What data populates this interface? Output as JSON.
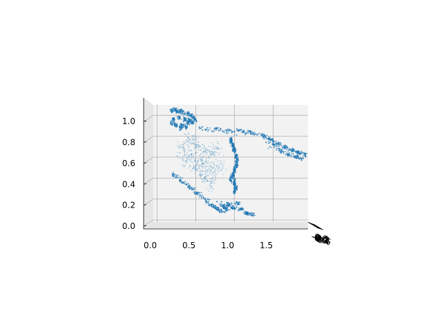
{
  "chart_data": {
    "type": "scatter",
    "projection": "3d",
    "title": "",
    "xlabel": "",
    "ylabel": "",
    "zlabel": "",
    "x_ticks": [
      "0.0",
      "0.5",
      "1.0",
      "1.5"
    ],
    "z_ticks": [
      "0.0",
      "0.2",
      "0.4",
      "0.6",
      "0.8",
      "1.0"
    ],
    "y_ticks": [
      "-0.6",
      "-0.4",
      "-0.2",
      "0.0",
      "0.2",
      "0.4",
      "0.6"
    ],
    "xlim": [
      -0.05,
      1.95
    ],
    "zlim": [
      -0.02,
      1.1
    ],
    "grid": true,
    "marker_color": "#1f77b4",
    "point_count": 2400,
    "series": [
      {
        "structure": "dense top-left cluster",
        "points": [
          [
            0.18,
            1.05
          ],
          [
            0.22,
            1.06
          ],
          [
            0.26,
            1.04
          ],
          [
            0.3,
            1.05
          ],
          [
            0.34,
            1.03
          ],
          [
            0.4,
            1.02
          ],
          [
            0.44,
            1.0
          ],
          [
            0.48,
            0.98
          ],
          [
            0.5,
            0.95
          ],
          [
            0.46,
            0.93
          ],
          [
            0.4,
            0.92
          ],
          [
            0.32,
            0.9
          ],
          [
            0.24,
            0.9
          ],
          [
            0.18,
            0.92
          ],
          [
            0.2,
            0.96
          ],
          [
            0.28,
            0.98
          ],
          [
            0.36,
            0.96
          ],
          [
            0.42,
            0.95
          ],
          [
            0.38,
            0.88
          ],
          [
            0.3,
            0.87
          ]
        ]
      },
      {
        "structure": "upper diagonal band",
        "points": [
          [
            0.55,
            0.88
          ],
          [
            0.75,
            0.87
          ],
          [
            0.9,
            0.86
          ],
          [
            1.05,
            0.86
          ],
          [
            1.2,
            0.84
          ],
          [
            1.35,
            0.82
          ],
          [
            1.45,
            0.78
          ],
          [
            1.55,
            0.74
          ],
          [
            1.65,
            0.7
          ],
          [
            1.75,
            0.67
          ],
          [
            1.85,
            0.64
          ],
          [
            1.92,
            0.62
          ],
          [
            1.5,
            0.72
          ],
          [
            1.6,
            0.66
          ],
          [
            1.7,
            0.62
          ],
          [
            1.8,
            0.6
          ],
          [
            1.88,
            0.58
          ]
        ]
      },
      {
        "structure": "middle column",
        "points": [
          [
            0.95,
            0.78
          ],
          [
            0.98,
            0.72
          ],
          [
            1.0,
            0.68
          ],
          [
            1.02,
            0.62
          ],
          [
            1.04,
            0.58
          ],
          [
            1.03,
            0.52
          ],
          [
            1.0,
            0.48
          ],
          [
            0.98,
            0.42
          ],
          [
            0.95,
            0.38
          ],
          [
            1.0,
            0.34
          ],
          [
            1.02,
            0.3
          ],
          [
            1.0,
            0.26
          ]
        ]
      },
      {
        "structure": "lower diagonal and bottom cluster",
        "points": [
          [
            0.2,
            0.44
          ],
          [
            0.3,
            0.38
          ],
          [
            0.4,
            0.32
          ],
          [
            0.5,
            0.26
          ],
          [
            0.6,
            0.2
          ],
          [
            0.7,
            0.14
          ],
          [
            0.78,
            0.1
          ],
          [
            0.82,
            0.08
          ],
          [
            0.9,
            0.1
          ],
          [
            0.98,
            0.12
          ],
          [
            1.05,
            0.16
          ],
          [
            1.1,
            0.1
          ],
          [
            1.18,
            0.06
          ],
          [
            1.25,
            0.05
          ],
          [
            0.86,
            0.13
          ],
          [
            0.92,
            0.15
          ]
        ]
      },
      {
        "structure": "sparse interior fill",
        "points": [
          [
            0.3,
            0.7
          ],
          [
            0.4,
            0.6
          ],
          [
            0.5,
            0.75
          ],
          [
            0.6,
            0.55
          ],
          [
            0.7,
            0.65
          ],
          [
            0.5,
            0.5
          ],
          [
            0.6,
            0.4
          ],
          [
            0.7,
            0.3
          ],
          [
            0.8,
            0.7
          ],
          [
            0.4,
            0.8
          ],
          [
            0.3,
            0.55
          ],
          [
            0.85,
            0.5
          ],
          [
            0.75,
            0.45
          ]
        ]
      }
    ]
  }
}
